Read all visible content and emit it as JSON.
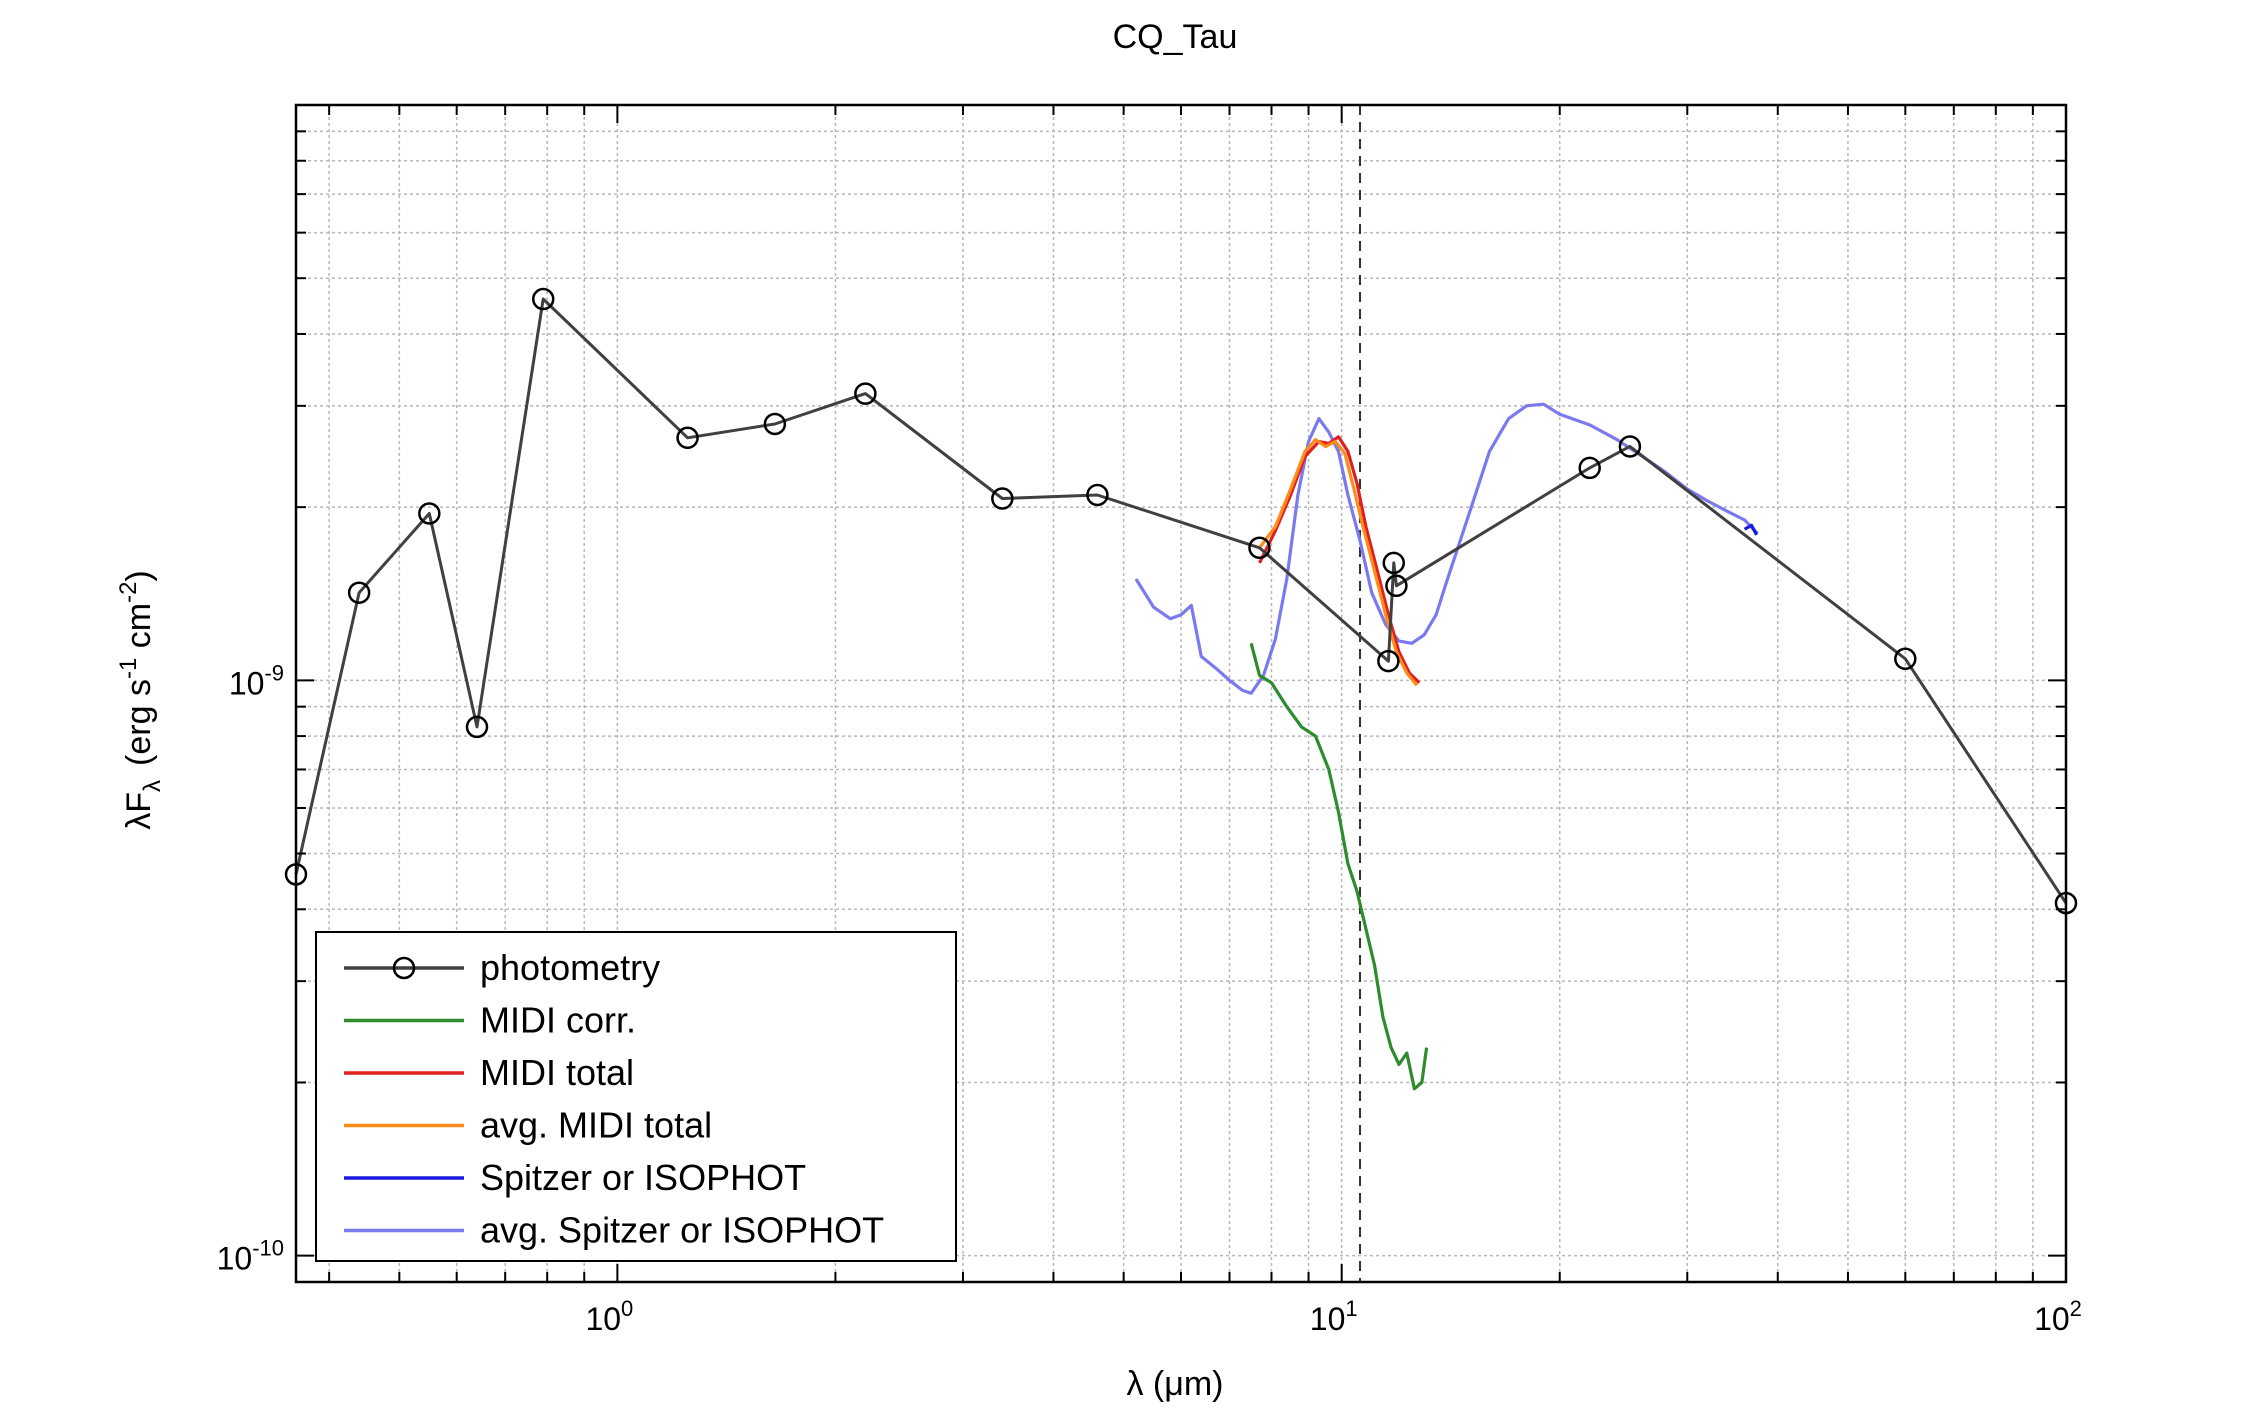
{
  "chart_data": {
    "type": "line",
    "title": "CQ_Tau",
    "xlabel": "λ (μm)",
    "ylabel": {
      "main": "λF",
      "sub": "λ",
      "units": "(erg s",
      "u1": "-1",
      "u2": " cm",
      "u3": "-2",
      "u4": ")"
    },
    "xscale": "log",
    "yscale": "log",
    "xlim": [
      0.36,
      100
    ],
    "ylim": [
      9e-11,
      1e-08
    ],
    "grid": true,
    "legend_position": "bottom-left",
    "x_ticks": [
      {
        "value": 1,
        "base": "10",
        "exp": "0"
      },
      {
        "value": 10,
        "base": "10",
        "exp": "1"
      },
      {
        "value": 100,
        "base": "10",
        "exp": "2"
      }
    ],
    "y_ticks": [
      {
        "value": 1e-10,
        "base": "10",
        "exp": "-10"
      },
      {
        "value": 1e-09,
        "base": "10",
        "exp": "-9"
      }
    ],
    "vertical_line_x": 10.6,
    "series": [
      {
        "name": "photometry",
        "color": "#404040",
        "marker": "circle",
        "x": [
          0.36,
          0.44,
          0.55,
          0.64,
          0.79,
          1.25,
          1.65,
          2.2,
          3.4,
          4.6,
          7.7,
          11.6,
          11.8,
          11.9,
          22,
          25,
          60,
          100
        ],
        "y": [
          4.6e-10,
          1.42e-09,
          1.95e-09,
          8.3e-10,
          4.6e-09,
          2.64e-09,
          2.79e-09,
          3.15e-09,
          2.07e-09,
          2.1e-09,
          1.7e-09,
          1.08e-09,
          1.6e-09,
          1.46e-09,
          2.34e-09,
          2.55e-09,
          1.09e-09,
          4.1e-10
        ]
      },
      {
        "name": "MIDI corr.",
        "color": "#2e8b2e",
        "x": [
          7.5,
          7.7,
          8.0,
          8.4,
          8.8,
          9.2,
          9.6,
          9.9,
          10.2,
          10.5,
          10.8,
          11.1,
          11.4,
          11.7,
          12.0,
          12.3,
          12.6,
          12.9,
          13.1
        ],
        "y": [
          1.16e-09,
          1.02e-09,
          9.9e-10,
          9e-10,
          8.3e-10,
          8e-10,
          7e-10,
          5.9e-10,
          4.8e-10,
          4.3e-10,
          3.7e-10,
          3.2e-10,
          2.6e-10,
          2.3e-10,
          2.15e-10,
          2.25e-10,
          1.95e-10,
          2e-10,
          2.3e-10
        ]
      },
      {
        "name": "MIDI total",
        "color": "#e02020",
        "x": [
          7.7,
          8.1,
          8.5,
          8.9,
          9.3,
          9.6,
          9.9,
          10.2,
          10.5,
          10.8,
          11.2,
          11.6,
          12.0,
          12.4,
          12.8
        ],
        "y": [
          1.6e-09,
          1.82e-09,
          2.1e-09,
          2.45e-09,
          2.6e-09,
          2.58e-09,
          2.65e-09,
          2.5e-09,
          2.2e-09,
          1.85e-09,
          1.55e-09,
          1.3e-09,
          1.12e-09,
          1.03e-09,
          9.9e-10
        ]
      },
      {
        "name": "avg. MIDI total",
        "color": "#ff8c1a",
        "x": [
          7.7,
          8.1,
          8.5,
          8.9,
          9.2,
          9.5,
          9.8,
          10.1,
          10.4,
          10.7,
          11.1,
          11.5,
          11.9,
          12.3,
          12.7
        ],
        "y": [
          1.7e-09,
          1.85e-09,
          2.15e-09,
          2.5e-09,
          2.62e-09,
          2.55e-09,
          2.6e-09,
          2.48e-09,
          2.15e-09,
          1.85e-09,
          1.55e-09,
          1.3e-09,
          1.12e-09,
          1.03e-09,
          9.8e-10
        ]
      },
      {
        "name": "Spitzer or ISOPHOT",
        "color": "#1a1ae0",
        "x": [
          36.0,
          36.8,
          37.4
        ],
        "y": [
          1.83e-09,
          1.86e-09,
          1.79e-09
        ]
      },
      {
        "name": "avg. Spitzer or ISOPHOT",
        "color": "#7a7aee",
        "x": [
          5.2,
          5.5,
          5.8,
          6.0,
          6.2,
          6.4,
          6.7,
          7.0,
          7.3,
          7.5,
          7.8,
          8.1,
          8.4,
          8.7,
          9.0,
          9.3,
          9.6,
          9.9,
          10.2,
          10.6,
          11.0,
          11.5,
          12.0,
          12.5,
          13.0,
          13.5,
          14.0,
          15.0,
          16.0,
          17.0,
          18.0,
          19.0,
          20.0,
          22.0,
          24.0,
          26.0,
          28.0,
          30.0,
          32.0,
          34.0,
          36.0,
          37.5
        ],
        "y": [
          1.5e-09,
          1.34e-09,
          1.28e-09,
          1.3e-09,
          1.35e-09,
          1.1e-09,
          1.05e-09,
          1e-09,
          9.6e-10,
          9.5e-10,
          1.02e-09,
          1.18e-09,
          1.5e-09,
          2.1e-09,
          2.6e-09,
          2.85e-09,
          2.7e-09,
          2.5e-09,
          2.1e-09,
          1.75e-09,
          1.42e-09,
          1.25e-09,
          1.17e-09,
          1.16e-09,
          1.2e-09,
          1.3e-09,
          1.5e-09,
          1.95e-09,
          2.5e-09,
          2.85e-09,
          3e-09,
          3.02e-09,
          2.9e-09,
          2.78e-09,
          2.62e-09,
          2.45e-09,
          2.3e-09,
          2.15e-09,
          2.05e-09,
          1.97e-09,
          1.9e-09,
          1.8e-09
        ]
      }
    ]
  }
}
